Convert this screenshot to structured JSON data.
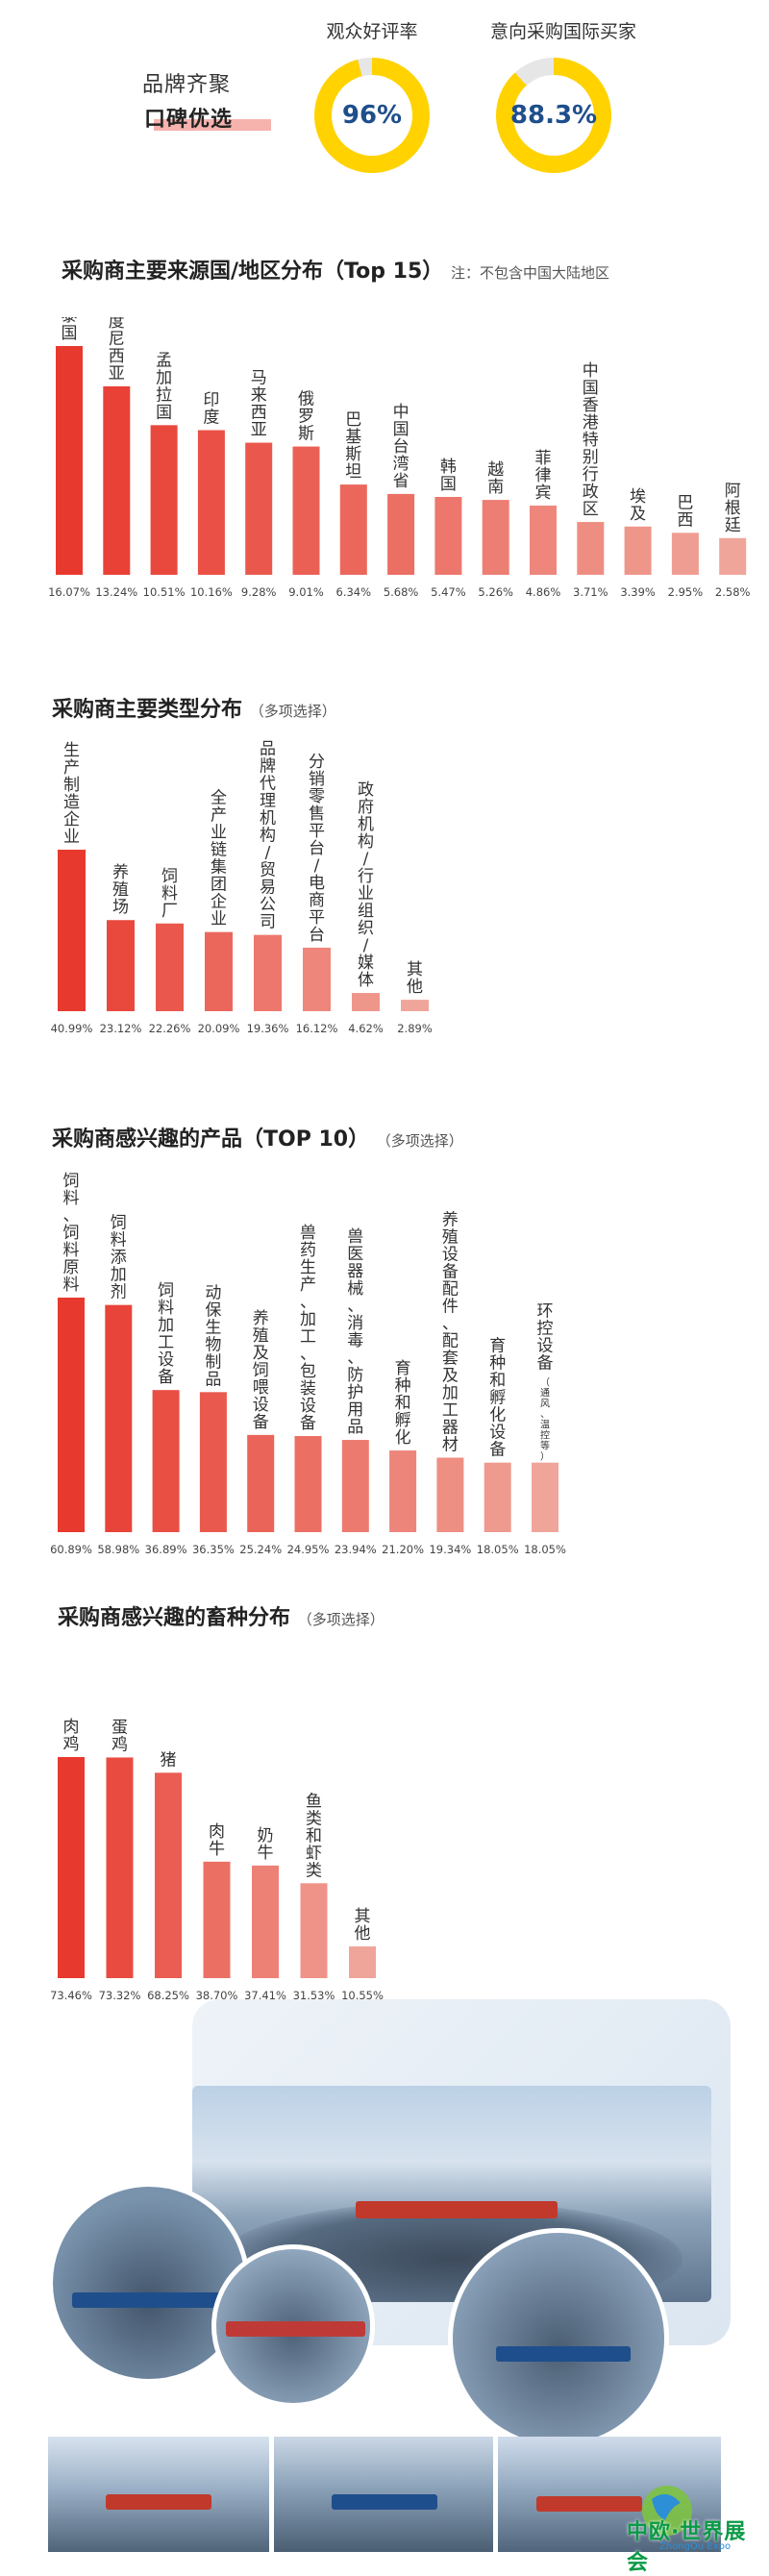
{
  "header": {
    "brand_line1": "品牌齐聚",
    "brand_line2": "口碑优选",
    "stats": [
      {
        "label": "观众好评率",
        "value": "96%",
        "percent": 96
      },
      {
        "label": "意向采购国际买家",
        "value": "88.3%",
        "percent": 88.3
      }
    ],
    "ring_color": "#ffd200",
    "ring_track": "#e6e6e6"
  },
  "chart_data": [
    {
      "type": "bar",
      "title": "采购商主要来源国/地区分布（Top 15）",
      "note": "注：不包含中国大陆地区",
      "categories": [
        "泰国",
        "印度尼西亚",
        "孟加拉国",
        "印度",
        "马来西亚",
        "俄罗斯",
        "巴基斯坦",
        "中国台湾省",
        "韩国",
        "越南",
        "菲律宾",
        "中国香港特别行政区",
        "埃及",
        "巴西",
        "阿根廷"
      ],
      "values": [
        16.07,
        13.24,
        10.51,
        10.16,
        9.28,
        9.01,
        6.34,
        5.68,
        5.47,
        5.26,
        4.86,
        3.71,
        3.39,
        2.95,
        2.58
      ],
      "value_labels": [
        "16.07%",
        "13.24%",
        "10.51%",
        "10.16%",
        "9.28%",
        "9.01%",
        "6.34%",
        "5.68%",
        "5.47%",
        "5.26%",
        "4.86%",
        "3.71%",
        "3.39%",
        "2.95%",
        "2.58%"
      ]
    },
    {
      "type": "bar",
      "title": "采购商主要类型分布",
      "note": "（多项选择）",
      "categories": [
        "生产制造企业",
        "养殖场",
        "饲料厂",
        "全产业链集团企业",
        "品牌代理机构/贸易公司",
        "分销零售平台/电商平台",
        "政府机构/行业组织/媒体",
        "其他"
      ],
      "values": [
        40.99,
        23.12,
        22.26,
        20.09,
        19.36,
        16.12,
        4.62,
        2.89
      ],
      "value_labels": [
        "40.99%",
        "23.12%",
        "22.26%",
        "20.09%",
        "19.36%",
        "16.12%",
        "4.62%",
        "2.89%"
      ]
    },
    {
      "type": "bar",
      "title": "采购商感兴趣的产品（TOP 10）",
      "note": "（多项选择）",
      "categories": [
        "饲料、饲料原料",
        "饲料添加剂",
        "饲料加工设备",
        "动保生物制品",
        "养殖及饲喂设备",
        "兽药生产、加工、包装设备",
        "兽医器械、消毒、防护用品",
        "育种和孵化",
        "养殖设备配件、配套及加工器材",
        "育种和孵化设备",
        "环控设备"
      ],
      "sublabels": [
        "",
        "",
        "",
        "",
        "",
        "",
        "",
        "",
        "",
        "",
        "（通风、温控等）"
      ],
      "values": [
        60.89,
        58.98,
        36.89,
        36.35,
        25.24,
        24.95,
        23.94,
        21.2,
        19.34,
        18.05,
        18.05
      ],
      "value_labels": [
        "60.89%",
        "58.98%",
        "36.89%",
        "36.35%",
        "25.24%",
        "24.95%",
        "23.94%",
        "21.20%",
        "19.34%",
        "18.05%",
        "18.05%"
      ]
    },
    {
      "type": "bar",
      "title": "采购商感兴趣的畜种分布",
      "note": "（多项选择）",
      "categories": [
        "肉鸡",
        "蛋鸡",
        "猪",
        "肉牛",
        "奶牛",
        "鱼类和虾类",
        "其他"
      ],
      "values": [
        73.46,
        73.32,
        68.25,
        38.7,
        37.41,
        31.53,
        10.55
      ],
      "value_labels": [
        "73.46%",
        "73.32%",
        "68.25%",
        "38.70%",
        "37.41%",
        "31.53%",
        "10.55%"
      ]
    }
  ],
  "colors": {
    "bar_start": "#e8392e",
    "bar_end": "#f0a59a",
    "title_text": "#222222"
  },
  "footer": {
    "logo_text": "中欧·世界展会",
    "logo_sub": "ZhongOu Expo"
  }
}
